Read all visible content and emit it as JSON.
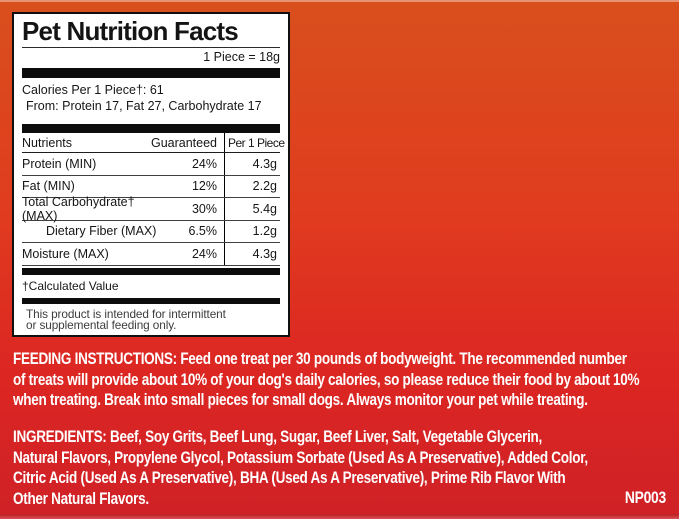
{
  "colors": {
    "background_top": "#d94f1d",
    "background_bottom": "#cf2127",
    "panel_background": "#ffffff",
    "panel_text": "#161616",
    "red_text": "#ffffff"
  },
  "panel": {
    "title": "Pet Nutrition Facts",
    "serving": "1 Piece = 18g",
    "calories_line1": "Calories Per 1 Piece†: 61",
    "calories_line2": "From: Protein 17, Fat 27, Carbohydrate 17",
    "table": {
      "col_nutrients": "Nutrients",
      "col_guaranteed": "Guaranteed",
      "col_per_piece": "Per 1 Piece",
      "rows": [
        {
          "name": "Protein (MIN)",
          "guaranteed": "24%",
          "per_piece": "4.3g"
        },
        {
          "name": "Fat (MIN)",
          "guaranteed": "12%",
          "per_piece": "2.2g"
        },
        {
          "name": "Total Carbohydrate† (MAX)",
          "guaranteed": "30%",
          "per_piece": "5.4g"
        },
        {
          "name": "Dietary Fiber (MAX)",
          "guaranteed": "6.5%",
          "per_piece": "1.2g"
        },
        {
          "name": "Moisture (MAX)",
          "guaranteed": "24%",
          "per_piece": "4.3g"
        }
      ]
    },
    "footnote": "†Calculated Value",
    "disclaimer": "This product is intended for intermittent\nor supplemental feeding only."
  },
  "feeding_instructions": "FEEDING INSTRUCTIONS: Feed one treat per 30 pounds of bodyweight. The recommended number\nof treats will provide about 10% of your dog's daily calories, so please reduce their food by about 10%\nwhen treating. Break into small pieces for small dogs. Always monitor your pet while treating.",
  "ingredients": "INGREDIENTS: Beef, Soy Grits, Beef Lung, Sugar, Beef Liver, Salt, Vegetable Glycerin,\nNatural Flavors, Propylene Glycol, Potassium Sorbate (Used As A Preservative), Added Color,\nCitric Acid (Used As A Preservative), BHA (Used As A Preservative), Prime Rib Flavor With\nOther Natural Flavors.",
  "product_code": "NP003"
}
